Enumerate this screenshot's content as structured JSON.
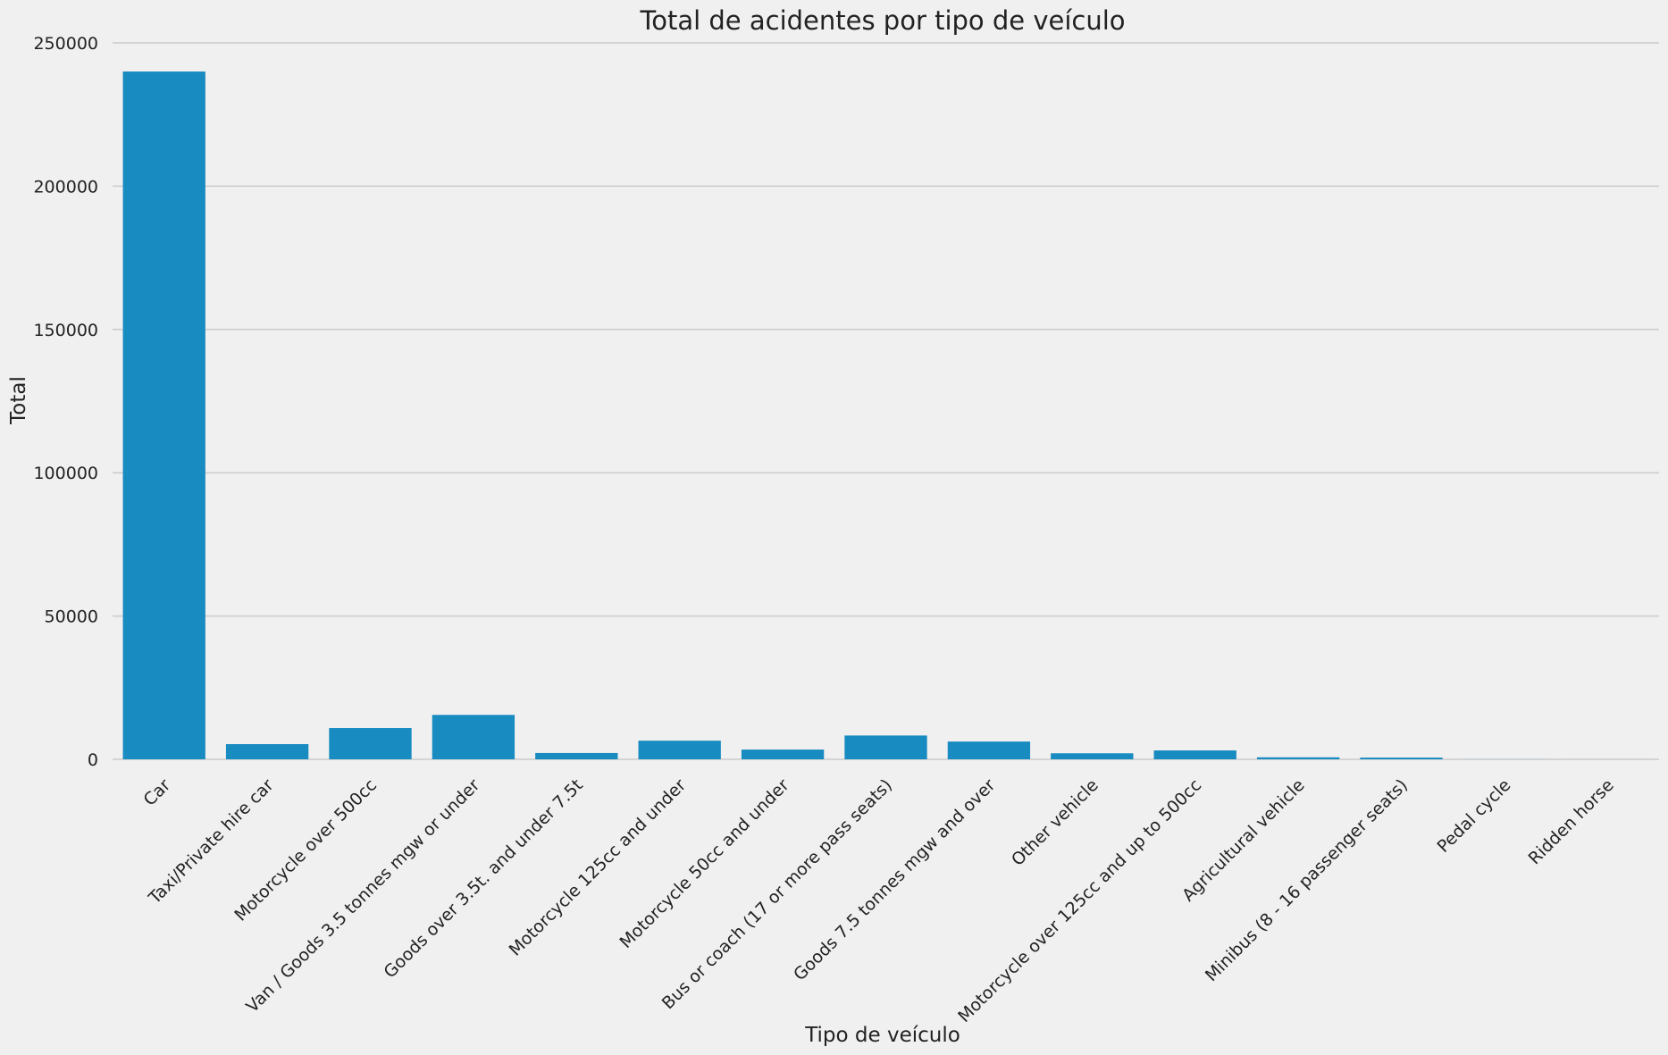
{
  "chart_data": {
    "type": "bar",
    "title": "Total de acidentes por tipo de veículo",
    "xlabel": "Tipo de veículo",
    "ylabel": "Total",
    "ylim": [
      0,
      250000
    ],
    "yticks": [
      0,
      50000,
      100000,
      150000,
      200000,
      250000
    ],
    "grid": "horizontal",
    "bar_color": "#188bc0",
    "background": "#f0f0f0",
    "categories": [
      "Car",
      "Taxi/Private hire car",
      "Motorcycle over 500cc",
      "Van / Goods 3.5 tonnes mgw or under",
      "Goods over 3.5t. and under 7.5t",
      "Motorcycle 125cc and under",
      "Motorcycle 50cc and under",
      "Bus or coach (17 or more pass seats)",
      "Goods 7.5 tonnes mgw and over",
      "Other vehicle",
      "Motorcycle over 125cc and up to 500cc",
      "Agricultural vehicle",
      "Minibus (8 - 16 passenger seats)",
      "Pedal cycle",
      "Ridden horse"
    ],
    "values": [
      240000,
      5300,
      10900,
      15500,
      2200,
      6500,
      3400,
      8300,
      6200,
      2100,
      3100,
      700,
      600,
      30,
      10
    ]
  }
}
